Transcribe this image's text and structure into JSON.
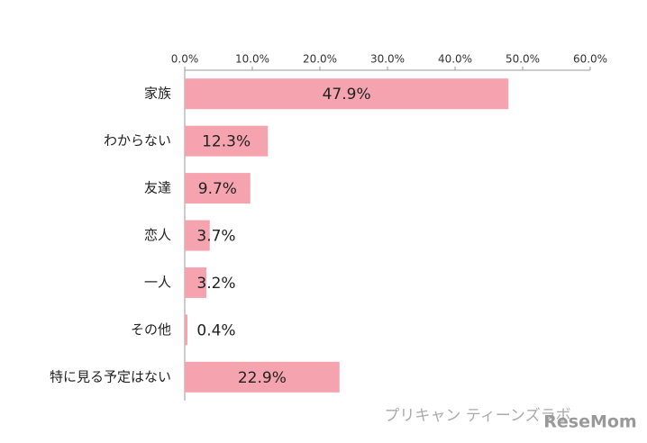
{
  "chart_data": {
    "type": "bar",
    "orientation": "horizontal",
    "categories": [
      "家族",
      "わからない",
      "友達",
      "恋人",
      "一人",
      "その他",
      "特に見る予定はない"
    ],
    "values": [
      47.9,
      12.3,
      9.7,
      3.7,
      3.2,
      0.4,
      22.9
    ],
    "value_labels": [
      "47.9%",
      "12.3%",
      "9.7%",
      "3.7%",
      "3.2%",
      "0.4%",
      "22.9%"
    ],
    "color": "#f5a3ae",
    "xlim": [
      0,
      60
    ],
    "xticks": [
      {
        "value": 0,
        "label": "0.0%"
      },
      {
        "value": 10,
        "label": "10.0%"
      },
      {
        "value": 20,
        "label": "20.0%"
      },
      {
        "value": 30,
        "label": "30.0%"
      },
      {
        "value": 40,
        "label": "40.0%"
      },
      {
        "value": 50,
        "label": "50.0%"
      },
      {
        "value": 60,
        "label": "60.0%"
      }
    ],
    "grid": false,
    "annotations": [
      "プリキャン ティーンズラボ",
      "ReseMom"
    ]
  }
}
